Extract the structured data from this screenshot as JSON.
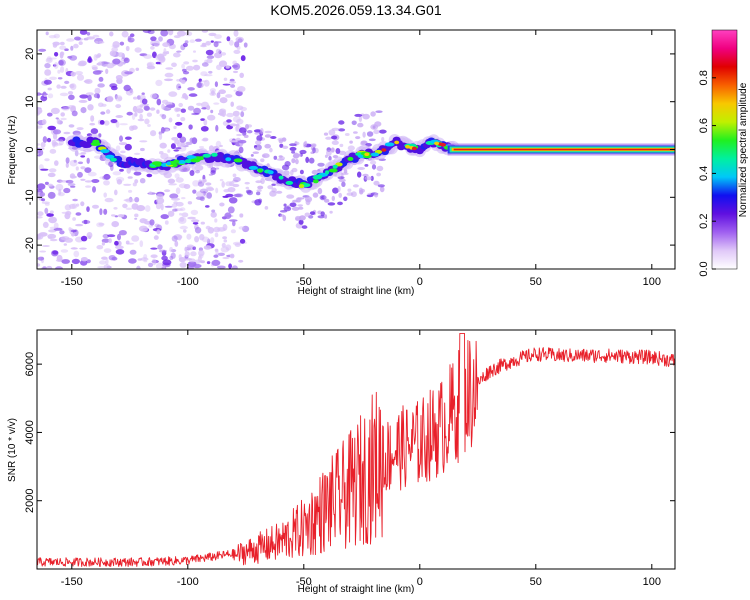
{
  "chart_data": [
    {
      "type": "heatmap",
      "title": "KOM5.2026.059.13.34.G01",
      "xlabel": "Height of straight line (km)",
      "ylabel": "Frequency (Hz)",
      "xlim": [
        -165,
        110
      ],
      "ylim": [
        -25,
        25
      ],
      "xticks": [
        -150,
        -100,
        -50,
        0,
        50,
        100
      ],
      "yticks": [
        -20,
        -10,
        0,
        10,
        20
      ],
      "colorbar": {
        "label": "Normalized spectral amplitude",
        "range": [
          0,
          1
        ],
        "ticks": [
          "0.0",
          "0.2",
          "0.4",
          "0.6",
          "0.8"
        ],
        "colors": [
          "#ffffff",
          "#e0c8f8",
          "#a060f0",
          "#6010e0",
          "#1010f0",
          "#00c8f8",
          "#00f0a0",
          "#20f020",
          "#c0f000",
          "#f8c800",
          "#f86000",
          "#e00000",
          "#f00080",
          "#ff40c0"
        ]
      },
      "ridge": {
        "height_km": [
          -140,
          -130,
          -120,
          -110,
          -100,
          -90,
          -80,
          -70,
          -60,
          -50,
          -40,
          -30,
          -25,
          -20,
          -15,
          -10,
          -5,
          0,
          5,
          10,
          15,
          30,
          50,
          70,
          90,
          110
        ],
        "frequency_hz": [
          1.5,
          -2.5,
          -3,
          -3.5,
          -2,
          -1.5,
          -2,
          -4,
          -6,
          -7.5,
          -5,
          -2,
          -1,
          -1,
          0,
          1.5,
          0.5,
          0,
          1.5,
          1,
          0,
          0,
          0,
          0,
          0,
          0
        ]
      }
    },
    {
      "type": "line",
      "title": "",
      "xlabel": "Height of straight line (km)",
      "ylabel": "SNR (10 * v/v)",
      "xlim": [
        -165,
        110
      ],
      "ylim": [
        0,
        7000
      ],
      "xticks": [
        -150,
        -100,
        -50,
        0,
        50,
        100
      ],
      "yticks": [
        2000,
        4000,
        6000
      ],
      "color": "#e8202a",
      "trend": {
        "x": [
          -165,
          -120,
          -100,
          -80,
          -60,
          -50,
          -40,
          -30,
          -20,
          -10,
          0,
          10,
          20,
          30,
          40,
          50,
          60,
          80,
          100,
          110
        ],
        "y": [
          150,
          150,
          200,
          400,
          800,
          1200,
          1800,
          2300,
          3000,
          3500,
          3700,
          4200,
          5100,
          5800,
          6100,
          6300,
          6250,
          6250,
          6200,
          6100
        ]
      }
    }
  ]
}
